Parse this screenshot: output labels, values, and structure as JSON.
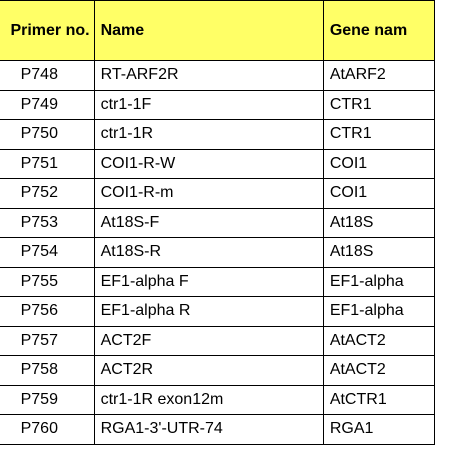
{
  "table": {
    "headers": [
      "Primer no.",
      "Name",
      "Gene nam"
    ],
    "rows": [
      [
        "P748",
        "RT-ARF2R",
        "AtARF2"
      ],
      [
        "P749",
        "ctr1-1F",
        "CTR1"
      ],
      [
        "P750",
        "ctr1-1R",
        "CTR1"
      ],
      [
        "P751",
        "COI1-R-W",
        "COI1"
      ],
      [
        "P752",
        "COI1-R-m",
        "COI1"
      ],
      [
        "P753",
        "At18S-F",
        "At18S"
      ],
      [
        "P754",
        "At18S-R",
        "At18S"
      ],
      [
        "P755",
        "EF1-alpha F",
        "EF1-alpha"
      ],
      [
        "P756",
        "EF1-alpha R",
        "EF1-alpha"
      ],
      [
        "P757",
        "ACT2F",
        "AtACT2"
      ],
      [
        "P758",
        "ACT2R",
        "AtACT2"
      ],
      [
        "P759",
        "ctr1-1R exon12m",
        "AtCTR1"
      ],
      [
        "P760",
        "RGA1-3'-UTR-74",
        "RGA1"
      ]
    ]
  },
  "colors": {
    "header_background": "#ffff66",
    "border": "#000000"
  }
}
